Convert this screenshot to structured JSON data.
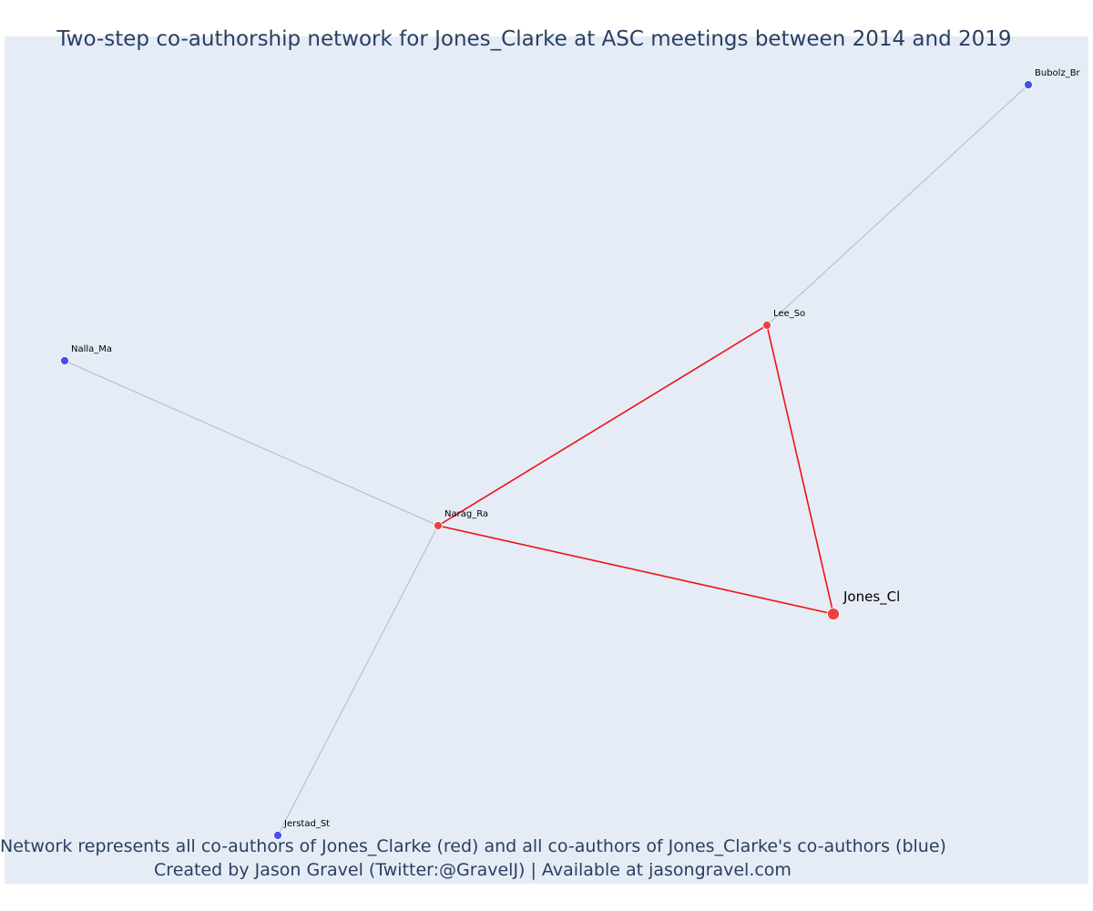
{
  "title": "Two-step co-authorship network for Jones_Clarke at ASC meetings between 2014 and 2019",
  "caption": {
    "line1": "Network represents all co-authors of Jones_Clarke (red) and all co-authors of Jones_Clarke's co-authors (blue)",
    "line2": "Created by Jason Gravel (Twitter:@GravelJ) | Available at jasongravel.com"
  },
  "colors": {
    "plot_background": "#e5ecf6",
    "direct_coauthor": "#ef3b3b",
    "second_step_coauthor": "#3b48e6",
    "direct_edge": "#ee1111",
    "second_step_edge": "#b4b9c9",
    "title_text": "#2a3f5f"
  },
  "nodes": [
    {
      "id": "Jones_Cl",
      "label": "Jones_Cl",
      "group": "focal"
    },
    {
      "id": "Lee_So",
      "label": "Lee_So",
      "group": "direct"
    },
    {
      "id": "Narag_Ra",
      "label": "Narag_Ra",
      "group": "direct"
    },
    {
      "id": "Bubolz_Br",
      "label": "Bubolz_Br",
      "group": "second"
    },
    {
      "id": "Nalla_Ma",
      "label": "Nalla_Ma",
      "group": "second"
    },
    {
      "id": "Jerstad_St",
      "label": "Jerstad_St",
      "group": "second"
    }
  ],
  "edges": [
    {
      "source": "Jones_Cl",
      "target": "Lee_So",
      "type": "direct"
    },
    {
      "source": "Jones_Cl",
      "target": "Narag_Ra",
      "type": "direct"
    },
    {
      "source": "Lee_So",
      "target": "Narag_Ra",
      "type": "direct"
    },
    {
      "source": "Lee_So",
      "target": "Bubolz_Br",
      "type": "second"
    },
    {
      "source": "Narag_Ra",
      "target": "Nalla_Ma",
      "type": "second"
    },
    {
      "source": "Narag_Ra",
      "target": "Jerstad_St",
      "type": "second"
    }
  ]
}
